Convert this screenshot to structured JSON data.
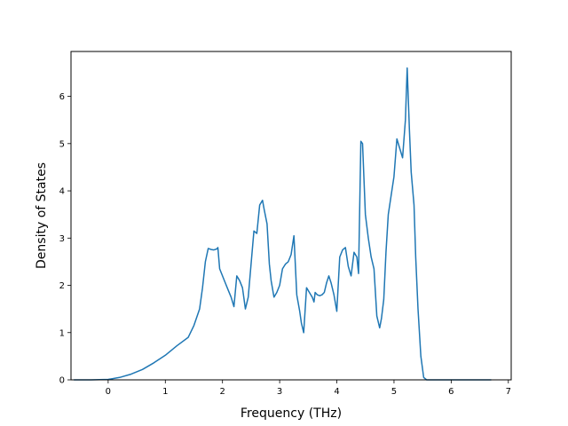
{
  "chart_data": {
    "type": "line",
    "title": "",
    "xlabel": "Frequency (THz)",
    "ylabel": "Density of States",
    "xlim": [
      -0.65,
      7.05
    ],
    "ylim": [
      0,
      6.95
    ],
    "x_ticks": [
      0,
      1,
      2,
      3,
      4,
      5,
      6,
      7
    ],
    "y_ticks": [
      0,
      1,
      2,
      3,
      4,
      5,
      6
    ],
    "grid": false,
    "legend": "none",
    "series": [
      {
        "color": "#1f77b4",
        "x": [
          -0.6,
          -0.3,
          0,
          0.2,
          0.4,
          0.6,
          0.8,
          1.0,
          1.2,
          1.4,
          1.5,
          1.6,
          1.65,
          1.7,
          1.75,
          1.8,
          1.85,
          1.9,
          1.92,
          1.95,
          2.0,
          2.05,
          2.1,
          2.15,
          2.2,
          2.25,
          2.3,
          2.35,
          2.4,
          2.45,
          2.5,
          2.55,
          2.6,
          2.65,
          2.7,
          2.73,
          2.78,
          2.82,
          2.85,
          2.9,
          2.95,
          3.0,
          3.05,
          3.1,
          3.15,
          3.2,
          3.25,
          3.3,
          3.35,
          3.38,
          3.42,
          3.47,
          3.52,
          3.57,
          3.6,
          3.62,
          3.66,
          3.7,
          3.74,
          3.78,
          3.82,
          3.86,
          3.9,
          3.95,
          4.0,
          4.05,
          4.1,
          4.15,
          4.2,
          4.25,
          4.3,
          4.35,
          4.38,
          4.42,
          4.45,
          4.5,
          4.55,
          4.6,
          4.65,
          4.7,
          4.75,
          4.78,
          4.82,
          4.86,
          4.9,
          4.95,
          5.0,
          5.05,
          5.1,
          5.15,
          5.2,
          5.23,
          5.27,
          5.3,
          5.35,
          5.38,
          5.42,
          5.47,
          5.52,
          5.57,
          5.62,
          5.67,
          5.72,
          5.75,
          5.78,
          5.82,
          5.85,
          5.88,
          5.92,
          5.96,
          6.0,
          6.05,
          6.08,
          6.12,
          6.3,
          6.5,
          6.7
        ],
        "y": [
          0,
          0,
          0.01,
          0.05,
          0.12,
          0.22,
          0.36,
          0.52,
          0.72,
          0.9,
          1.15,
          1.5,
          1.95,
          2.5,
          2.78,
          2.76,
          2.75,
          2.77,
          2.8,
          2.35,
          2.2,
          2.05,
          1.9,
          1.75,
          1.55,
          2.2,
          2.1,
          1.95,
          1.5,
          1.75,
          2.45,
          3.15,
          3.1,
          3.7,
          3.8,
          3.6,
          3.3,
          2.45,
          2.1,
          1.75,
          1.85,
          2.0,
          2.35,
          2.45,
          2.5,
          2.65,
          3.05,
          1.8,
          1.45,
          1.2,
          1.0,
          1.95,
          1.85,
          1.75,
          1.65,
          1.85,
          1.8,
          1.78,
          1.8,
          1.85,
          2.05,
          2.2,
          2.05,
          1.8,
          1.45,
          2.6,
          2.75,
          2.8,
          2.4,
          2.2,
          2.7,
          2.6,
          2.25,
          5.05,
          5.0,
          3.5,
          3.0,
          2.6,
          2.35,
          1.35,
          1.1,
          1.3,
          1.7,
          2.7,
          3.5,
          3.9,
          4.3,
          5.1,
          4.9,
          4.7,
          5.5,
          6.6,
          5.3,
          4.4,
          3.7,
          2.6,
          1.5,
          0.5,
          0.05,
          0,
          0,
          0,
          0,
          0,
          0,
          0,
          0,
          0,
          0,
          0,
          0,
          0,
          0,
          0,
          0,
          0,
          0
        ]
      }
    ]
  }
}
